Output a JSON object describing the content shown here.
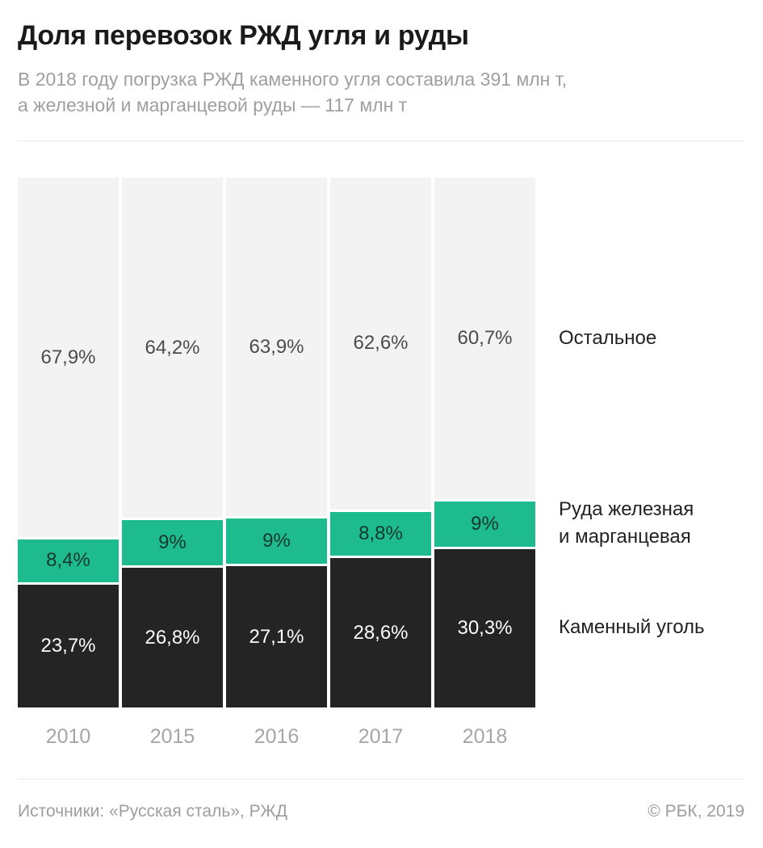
{
  "header": {
    "title": "Доля перевозок РЖД угля и руды",
    "subtitle_lines": [
      "В 2018 году погрузка РЖД каменного угля составила 391 млн т,",
      "а железной и марганцевой руды — 117 млн т"
    ]
  },
  "chart_data": {
    "type": "bar",
    "stacked": true,
    "units": "percent",
    "categories": [
      "2010",
      "2015",
      "2016",
      "2017",
      "2018"
    ],
    "series": [
      {
        "key": "coal",
        "name": "Каменный уголь",
        "color": "#242424",
        "values": [
          23.7,
          26.8,
          27.1,
          28.6,
          30.3
        ],
        "labels": [
          "23,7%",
          "26,8%",
          "27,1%",
          "28,6%",
          "30,3%"
        ]
      },
      {
        "key": "ore",
        "name": "Руда железная и марганцевая",
        "color": "#1dbb8d",
        "values": [
          8.4,
          9,
          9,
          8.8,
          9
        ],
        "labels": [
          "8,4%",
          "9%",
          "9%",
          "8,8%",
          "9%"
        ]
      },
      {
        "key": "rest",
        "name": "Остальное",
        "color": "#f3f3f3",
        "values": [
          67.9,
          64.2,
          63.9,
          62.6,
          60.7
        ],
        "labels": [
          "67,9%",
          "64,2%",
          "63,9%",
          "62,6%",
          "60,7%"
        ]
      }
    ],
    "legend": [
      {
        "key": "rest",
        "label_lines": [
          "Остальное"
        ]
      },
      {
        "key": "ore",
        "label_lines": [
          "Руда железная",
          "и марганцевая"
        ]
      },
      {
        "key": "coal",
        "label_lines": [
          "Каменный уголь"
        ]
      }
    ],
    "ylim": [
      0,
      100
    ],
    "grid": false,
    "legend_position": "right"
  },
  "footer": {
    "sources": "Источники: «Русская сталь», РЖД",
    "copyright": "© РБК, 2019"
  }
}
